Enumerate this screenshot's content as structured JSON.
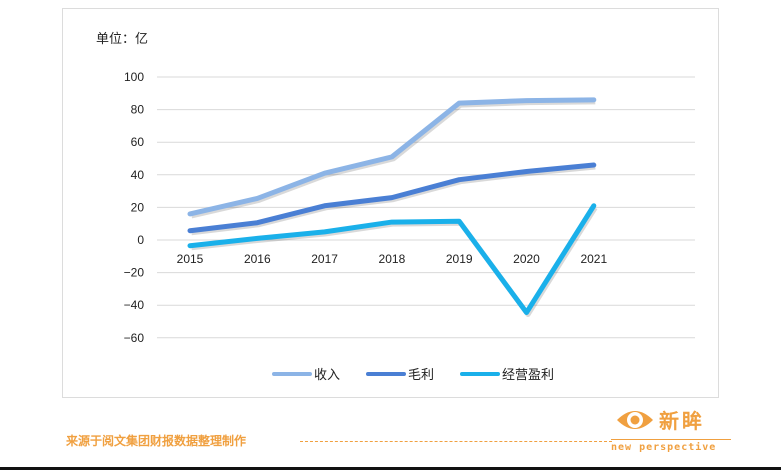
{
  "chart_data": {
    "type": "line",
    "title": "",
    "unit_label": "单位：亿",
    "xlabel": "",
    "ylabel": "",
    "categories": [
      "2015",
      "2016",
      "2017",
      "2018",
      "2019",
      "2020",
      "2021"
    ],
    "series": [
      {
        "name": "收入",
        "color": "#8cb4e6",
        "values": [
          16,
          25.5,
          41,
          51,
          84,
          85.5,
          86
        ]
      },
      {
        "name": "毛利",
        "color": "#4a7fd4",
        "values": [
          5.7,
          10.6,
          21,
          26,
          37,
          42,
          46
        ]
      },
      {
        "name": "经营盈利",
        "color": "#1ab0ea",
        "values": [
          -3.5,
          1,
          5,
          11,
          11.5,
          -44.5,
          21
        ]
      }
    ],
    "yticks": [
      100,
      80,
      60,
      40,
      20,
      0,
      -20,
      -40,
      -60
    ],
    "ylim": [
      -60,
      100
    ],
    "grid": true,
    "legend_position": "bottom"
  },
  "footer": {
    "source": "来源于阅文集团财报数据整理制作"
  },
  "logo": {
    "name_cn": "新眸",
    "name_en": "new perspective",
    "color": "#f0a040"
  }
}
